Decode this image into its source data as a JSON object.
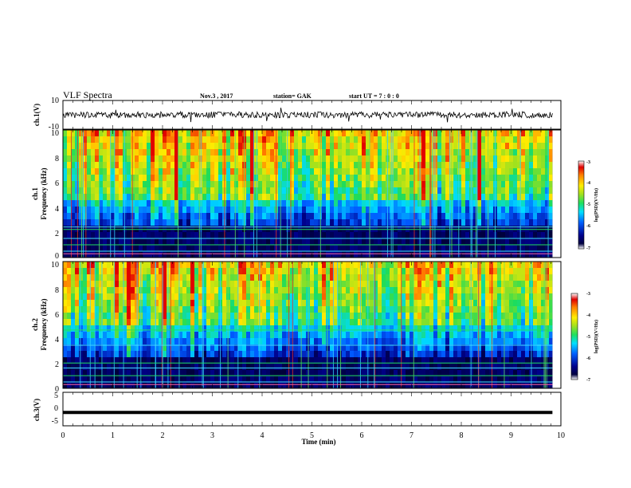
{
  "header": {
    "title": "VLF Spectra",
    "date": "Nov.3  , 2017",
    "station": "station= GAK",
    "start": "start  UT  =   7 : 0  : 0"
  },
  "chart_data": [
    {
      "type": "line",
      "name": "ch1-waveform",
      "ylabel": "ch.1(V)",
      "ylim": [
        -10,
        10
      ],
      "yticks": [
        "10",
        "-10"
      ],
      "xlim": [
        0,
        10
      ],
      "mean": 0.0,
      "amplitude": 2.2,
      "color": "#000000"
    },
    {
      "type": "heatmap",
      "name": "ch1-spectrogram",
      "ylabel": "ch.1\nFrequency (kHz)",
      "ylim": [
        0,
        10
      ],
      "yticks": [
        "0",
        "2",
        "4",
        "6",
        "8",
        "10"
      ],
      "xlim": [
        0,
        9.83
      ],
      "colorbar": {
        "label": "log(PSD)(V²/Hz)",
        "range": [
          -7,
          -3
        ],
        "ticks": [
          "-3",
          "-4",
          "-5",
          "-6",
          "-7"
        ]
      },
      "low_band_top_khz": 4.6,
      "interference_lines_khz": [
        0.3,
        0.5,
        1.0,
        1.5,
        2.2,
        2.4
      ]
    },
    {
      "type": "heatmap",
      "name": "ch2-spectrogram",
      "ylabel": "ch.2\nFrequency (kHz)",
      "ylim": [
        0,
        10
      ],
      "yticks": [
        "0",
        "2",
        "4",
        "6",
        "8",
        "10"
      ],
      "xlim": [
        0,
        9.83
      ],
      "colorbar": {
        "label": "log(PSD)(V²/Hz)",
        "range": [
          -7,
          -3
        ],
        "ticks": [
          "-3",
          "-4",
          "-5",
          "-6",
          "-7"
        ]
      },
      "low_band_top_khz": 4.9,
      "interference_lines_khz": [
        0.3,
        0.5,
        1.0,
        1.6,
        2.0,
        3.4,
        4.6
      ]
    },
    {
      "type": "line",
      "name": "ch3-signal",
      "ylabel": "ch.3(V)",
      "ylim": [
        -5,
        5
      ],
      "yticks": [
        "5",
        "0",
        "-5"
      ],
      "xlim": [
        0,
        9.83
      ],
      "value": -1.0,
      "color": "#000000"
    }
  ],
  "xaxis": {
    "label": "Time (min)",
    "range": [
      0,
      10
    ],
    "ticks": [
      "0",
      "1",
      "2",
      "3",
      "4",
      "5",
      "6",
      "7",
      "8",
      "9",
      "10"
    ]
  }
}
